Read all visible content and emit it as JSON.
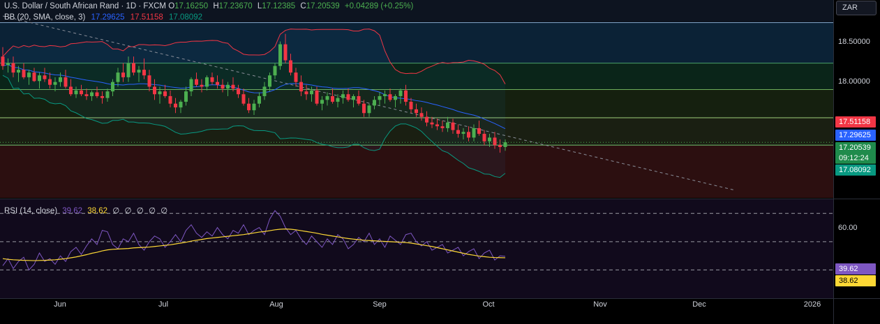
{
  "header": {
    "symbol": "U.S. Dollar / South African Rand · 1D · FXCM",
    "open_label": "O",
    "open": "17.16250",
    "high_label": "H",
    "high": "17.23670",
    "low_label": "L",
    "low": "17.12385",
    "close_label": "C",
    "close": "17.20539",
    "change": "+0.04289 (+0.25%)"
  },
  "bb_indicator": {
    "label": "BB (20, SMA, close, 3)",
    "basis": "17.29625",
    "upper": "17.51158",
    "lower": "17.08092"
  },
  "rsi_indicator": {
    "label": "RSI (14, close)",
    "rsi": "39.62",
    "ma": "38.62",
    "extras": [
      "∅",
      "∅",
      "∅",
      "∅",
      "∅"
    ]
  },
  "currency_button": "ZAR",
  "price_axis": {
    "ticks": [
      "18.50000",
      "18.00000"
    ]
  },
  "rsi_axis": {
    "ticks": [
      "60.00"
    ]
  },
  "badges": {
    "upper": "17.51158",
    "basis": "17.29625",
    "last": "17.20539",
    "countdown": "09:12:24",
    "lower": "17.08092",
    "rsi": "39.62",
    "rsi_ma": "38.62"
  },
  "time_axis": [
    "Jun",
    "Jul",
    "Aug",
    "Sep",
    "Oct",
    "Nov",
    "Dec",
    "2026"
  ],
  "colors": {
    "up": "#4caf50",
    "down": "#f23645",
    "basis": "#2962ff",
    "upper": "#f23645",
    "lower": "#089981",
    "rsi": "#7e57c2",
    "rsi_ma": "#fdd835",
    "bg": "#000000"
  },
  "chart_data": [
    {
      "type": "candlestick",
      "title": "U.S. Dollar / South African Rand · 1D · FXCM",
      "ylim": [
        16.62,
        18.72
      ],
      "levels": [
        18.48,
        18.05,
        17.77,
        17.47,
        17.18
      ],
      "trendline": {
        "from": [
          0,
          18.55
        ],
        "to": [
          140,
          16.7
        ]
      },
      "candles": [
        [
          18.12,
          18.22,
          17.98,
          18.02
        ],
        [
          18.03,
          18.1,
          17.95,
          18.05
        ],
        [
          18.05,
          18.12,
          17.9,
          17.95
        ],
        [
          17.95,
          18.02,
          17.85,
          17.98
        ],
        [
          17.98,
          18.05,
          17.88,
          17.9
        ],
        [
          17.9,
          17.98,
          17.82,
          17.95
        ],
        [
          17.95,
          18.0,
          17.85,
          17.86
        ],
        [
          17.86,
          17.95,
          17.78,
          17.92
        ],
        [
          17.92,
          18.0,
          17.85,
          17.88
        ],
        [
          17.88,
          17.95,
          17.78,
          17.82
        ],
        [
          17.82,
          17.9,
          17.75,
          17.85
        ],
        [
          17.85,
          17.95,
          17.8,
          17.9
        ],
        [
          17.9,
          17.98,
          17.78,
          17.8
        ],
        [
          17.8,
          17.88,
          17.7,
          17.72
        ],
        [
          17.72,
          17.8,
          17.68,
          17.76
        ],
        [
          17.76,
          17.82,
          17.7,
          17.72
        ],
        [
          17.72,
          17.78,
          17.66,
          17.7
        ],
        [
          17.7,
          17.76,
          17.65,
          17.74
        ],
        [
          17.74,
          17.8,
          17.68,
          17.7
        ],
        [
          17.7,
          17.75,
          17.62,
          17.68
        ],
        [
          17.68,
          17.78,
          17.64,
          17.75
        ],
        [
          17.75,
          17.88,
          17.7,
          17.85
        ],
        [
          17.85,
          18.0,
          17.8,
          17.95
        ],
        [
          17.95,
          18.05,
          17.85,
          17.9
        ],
        [
          17.9,
          18.12,
          17.85,
          18.05
        ],
        [
          18.05,
          18.12,
          17.92,
          17.95
        ],
        [
          17.95,
          18.02,
          17.85,
          17.98
        ],
        [
          17.98,
          18.1,
          17.88,
          17.92
        ],
        [
          17.92,
          17.98,
          17.75,
          17.8
        ],
        [
          17.8,
          17.88,
          17.66,
          17.72
        ],
        [
          17.72,
          17.8,
          17.62,
          17.75
        ],
        [
          17.75,
          17.82,
          17.68,
          17.7
        ],
        [
          17.7,
          17.76,
          17.58,
          17.62
        ],
        [
          17.62,
          17.68,
          17.52,
          17.58
        ],
        [
          17.58,
          17.66,
          17.52,
          17.64
        ],
        [
          17.64,
          17.8,
          17.6,
          17.75
        ],
        [
          17.75,
          17.9,
          17.7,
          17.88
        ],
        [
          17.88,
          17.95,
          17.8,
          17.82
        ],
        [
          17.82,
          17.88,
          17.74,
          17.8
        ],
        [
          17.8,
          17.92,
          17.76,
          17.9
        ],
        [
          17.9,
          17.95,
          17.82,
          17.85
        ],
        [
          17.85,
          17.92,
          17.78,
          17.82
        ],
        [
          17.82,
          17.88,
          17.74,
          17.78
        ],
        [
          17.78,
          17.85,
          17.7,
          17.82
        ],
        [
          17.82,
          17.9,
          17.75,
          17.78
        ],
        [
          17.78,
          17.82,
          17.68,
          17.72
        ],
        [
          17.72,
          17.78,
          17.6,
          17.62
        ],
        [
          17.62,
          17.68,
          17.52,
          17.55
        ],
        [
          17.55,
          17.66,
          17.5,
          17.62
        ],
        [
          17.62,
          17.74,
          17.58,
          17.7
        ],
        [
          17.7,
          17.85,
          17.66,
          17.8
        ],
        [
          17.8,
          17.95,
          17.75,
          17.92
        ],
        [
          17.92,
          18.05,
          17.88,
          18.02
        ],
        [
          18.02,
          18.28,
          17.98,
          18.25
        ],
        [
          18.25,
          18.36,
          18.05,
          18.08
        ],
        [
          18.08,
          18.15,
          17.92,
          17.95
        ],
        [
          17.95,
          18.0,
          17.8,
          17.85
        ],
        [
          17.85,
          17.92,
          17.7,
          17.75
        ],
        [
          17.75,
          17.82,
          17.66,
          17.72
        ],
        [
          17.72,
          17.8,
          17.64,
          17.76
        ],
        [
          17.76,
          17.8,
          17.6,
          17.62
        ],
        [
          17.62,
          17.7,
          17.55,
          17.66
        ],
        [
          17.66,
          17.74,
          17.6,
          17.7
        ],
        [
          17.7,
          17.78,
          17.62,
          17.64
        ],
        [
          17.64,
          17.72,
          17.58,
          17.68
        ],
        [
          17.68,
          17.76,
          17.62,
          17.72
        ],
        [
          17.72,
          17.78,
          17.64,
          17.66
        ],
        [
          17.66,
          17.72,
          17.58,
          17.7
        ],
        [
          17.7,
          17.76,
          17.6,
          17.62
        ],
        [
          17.62,
          17.66,
          17.48,
          17.52
        ],
        [
          17.52,
          17.62,
          17.48,
          17.6
        ],
        [
          17.6,
          17.7,
          17.56,
          17.66
        ],
        [
          17.66,
          17.74,
          17.6,
          17.7
        ],
        [
          17.7,
          17.76,
          17.62,
          17.72
        ],
        [
          17.72,
          17.78,
          17.64,
          17.66
        ],
        [
          17.66,
          17.72,
          17.58,
          17.7
        ],
        [
          17.7,
          17.78,
          17.62,
          17.76
        ],
        [
          17.76,
          17.82,
          17.6,
          17.64
        ],
        [
          17.64,
          17.68,
          17.52,
          17.56
        ],
        [
          17.56,
          17.62,
          17.48,
          17.52
        ],
        [
          17.52,
          17.58,
          17.44,
          17.48
        ],
        [
          17.48,
          17.54,
          17.38,
          17.42
        ],
        [
          17.42,
          17.48,
          17.36,
          17.4
        ],
        [
          17.4,
          17.46,
          17.34,
          17.38
        ],
        [
          17.38,
          17.44,
          17.32,
          17.36
        ],
        [
          17.36,
          17.48,
          17.32,
          17.42
        ],
        [
          17.42,
          17.46,
          17.3,
          17.34
        ],
        [
          17.34,
          17.4,
          17.26,
          17.3
        ],
        [
          17.3,
          17.36,
          17.24,
          17.32
        ],
        [
          17.32,
          17.38,
          17.22,
          17.26
        ],
        [
          17.26,
          17.4,
          17.22,
          17.36
        ],
        [
          17.36,
          17.44,
          17.28,
          17.3
        ],
        [
          17.3,
          17.34,
          17.18,
          17.22
        ],
        [
          17.22,
          17.3,
          17.16,
          17.26
        ],
        [
          17.26,
          17.32,
          17.14,
          17.18
        ],
        [
          17.18,
          17.24,
          17.1,
          17.16
        ],
        [
          17.16,
          17.24,
          17.12,
          17.21
        ]
      ]
    },
    {
      "type": "line",
      "title": "RSI (14, close)",
      "ylim": [
        10,
        80
      ],
      "levels": [
        70,
        50,
        30
      ],
      "axis_ticks": [
        60
      ],
      "series": [
        {
          "name": "RSI",
          "values": [
            33,
            38,
            31,
            36,
            39,
            30,
            34,
            42,
            36,
            38,
            34,
            40,
            36,
            43,
            46,
            41,
            47,
            52,
            48,
            58,
            57,
            48,
            45,
            52,
            50,
            56,
            48,
            44,
            50,
            54,
            52,
            46,
            50,
            55,
            50,
            58,
            62,
            56,
            53,
            57,
            54,
            60,
            55,
            52,
            58,
            56,
            62,
            55,
            58,
            60,
            55,
            66,
            72,
            68,
            60,
            55,
            58,
            52,
            48,
            54,
            50,
            46,
            52,
            48,
            55,
            52,
            45,
            48,
            53,
            50,
            56,
            48,
            52,
            46,
            54,
            51,
            48,
            55,
            56,
            50,
            47,
            50,
            44,
            46,
            48,
            42,
            44,
            46,
            40,
            43,
            45,
            38,
            42,
            44,
            37,
            40,
            39.62
          ]
        },
        {
          "name": "RSI MA",
          "values": [
            38,
            37.5,
            37.2,
            37,
            36.8,
            36.7,
            36.6,
            36.7,
            36.8,
            37,
            37.2,
            37.6,
            38,
            38.6,
            39.2,
            40,
            40.8,
            41.8,
            42.5,
            43.5,
            44.2,
            44.6,
            44.8,
            45,
            45.2,
            45.6,
            45.8,
            46,
            46.2,
            46.6,
            47,
            47.4,
            47.8,
            48.4,
            49,
            49.6,
            50.4,
            51,
            51.6,
            52.2,
            52.6,
            53,
            53.4,
            53.8,
            54.2,
            54.6,
            55,
            55.6,
            56.2,
            56.8,
            57.2,
            57.8,
            58.4,
            58.8,
            59,
            58.8,
            58.4,
            57.8,
            57.2,
            56.6,
            56,
            55.2,
            54.6,
            54,
            53.4,
            52.8,
            52.2,
            51.8,
            51.4,
            51,
            50.8,
            50.6,
            50.4,
            50.2,
            50,
            49.8,
            49.6,
            49.4,
            49,
            48.4,
            47.8,
            47.2,
            46.6,
            45.8,
            45,
            44.2,
            43.4,
            42.6,
            41.8,
            41,
            40.4,
            39.8,
            39.4,
            39,
            38.8,
            38.7,
            38.62
          ]
        }
      ]
    }
  ]
}
